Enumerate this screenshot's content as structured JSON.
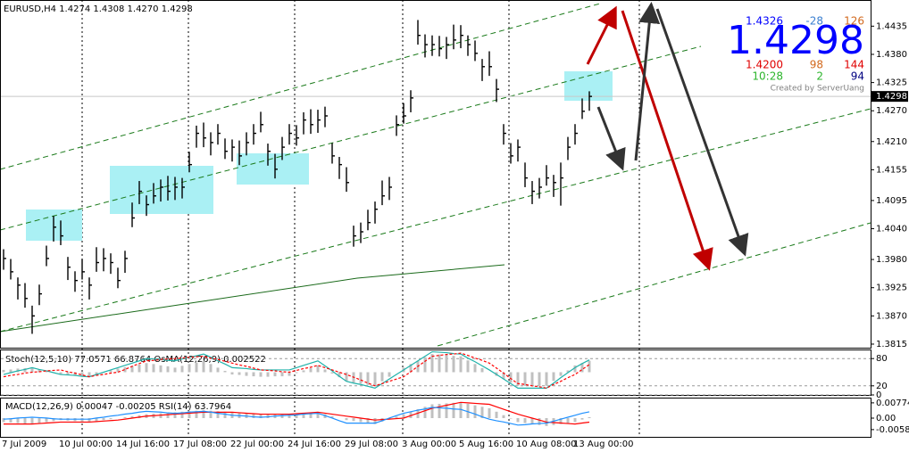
{
  "chart_data": {
    "type": "ohlc",
    "title": "EURUSD,H4  1.4274 1.4308 1.4270 1.4298",
    "color": "#000000",
    "categories": [
      "7 Jul 2009",
      null,
      null,
      null,
      null,
      null,
      null,
      null,
      "10 Jul 00:00",
      null,
      null,
      null,
      null,
      null,
      null,
      null,
      "14 Jul 16:00",
      null,
      null,
      null,
      null,
      null,
      null,
      null,
      "17 Jul 08:00",
      null,
      null,
      null,
      null,
      null,
      null,
      null,
      "22 Jul 00:00",
      null,
      null,
      null,
      null,
      null,
      null,
      null,
      "24 Jul 16:00",
      null,
      null,
      null,
      null,
      null,
      null,
      null,
      "29 Jul 08:00",
      null,
      null,
      null,
      null,
      null,
      null,
      null,
      "3 Aug 00:00",
      null,
      null,
      null,
      null,
      null,
      null,
      null,
      "5 Aug 16:00",
      null,
      null,
      null,
      null,
      null,
      null,
      null,
      "10 Aug 08:00",
      null,
      null,
      null,
      null,
      null,
      null,
      null,
      "13 Aug 00:00",
      null,
      null
    ],
    "high": [
      1.4,
      1.3981,
      1.3945,
      1.3934,
      1.389,
      1.3931,
      1.4007,
      1.4065,
      1.4056,
      1.3985,
      1.3957,
      1.3981,
      1.3945,
      1.4004,
      1.4002,
      1.3992,
      1.3964,
      1.3997,
      1.4091,
      1.4133,
      1.4105,
      1.4129,
      1.4136,
      1.4143,
      1.4141,
      1.4139,
      1.419,
      1.4241,
      1.4247,
      1.4228,
      1.4244,
      1.4216,
      1.4214,
      1.4212,
      1.4228,
      1.4244,
      1.4268,
      1.4206,
      1.4186,
      1.4219,
      1.4244,
      1.4242,
      1.4267,
      1.4273,
      1.4272,
      1.4278,
      1.4207,
      1.418,
      1.416,
      1.4046,
      1.4052,
      1.4077,
      1.4093,
      1.4134,
      1.4141,
      1.4261,
      1.4285,
      1.431,
      1.4447,
      1.4419,
      1.4417,
      1.4416,
      1.4414,
      1.4438,
      1.4437,
      1.4417,
      1.4407,
      1.4371,
      1.4386,
      1.4332,
      1.4244,
      1.4207,
      1.4214,
      1.4169,
      1.4133,
      1.4139,
      1.4164,
      1.4145,
      1.4169,
      1.4219,
      1.4244,
      1.4294,
      1.4308
    ],
    "low": [
      1.396,
      1.3941,
      1.3902,
      1.3886,
      1.3835,
      1.3891,
      1.3967,
      1.4015,
      1.4008,
      1.394,
      1.3917,
      1.3941,
      1.3902,
      1.3956,
      1.3957,
      1.3952,
      1.3924,
      1.3954,
      1.4043,
      1.4088,
      1.4065,
      1.4089,
      1.4093,
      1.4095,
      1.4096,
      1.4099,
      1.415,
      1.4198,
      1.4199,
      1.4183,
      1.4204,
      1.4176,
      1.4171,
      1.4164,
      1.4183,
      1.4204,
      1.4228,
      1.4163,
      1.4138,
      1.4174,
      1.4204,
      1.4202,
      1.4224,
      1.4225,
      1.4227,
      1.4238,
      1.4167,
      1.4137,
      1.4112,
      1.4005,
      1.4012,
      1.4037,
      1.405,
      1.4086,
      1.4096,
      1.4221,
      1.4245,
      1.4267,
      1.4399,
      1.4374,
      1.4377,
      1.4376,
      1.4371,
      1.439,
      1.4392,
      1.4377,
      1.4367,
      1.4328,
      1.4338,
      1.4287,
      1.4204,
      1.4167,
      1.4171,
      1.4121,
      1.4088,
      1.4099,
      1.4124,
      1.4102,
      1.4085,
      1.4174,
      1.4204,
      1.4254,
      1.427
    ],
    "close": [
      1.3982,
      1.3956,
      1.393,
      1.3904,
      1.387,
      1.3913,
      1.3982,
      1.4043,
      1.4026,
      1.3965,
      1.3939,
      1.3956,
      1.393,
      1.3974,
      1.3982,
      1.3974,
      1.3939,
      1.3982,
      1.4061,
      1.4113,
      1.4087,
      1.4104,
      1.4121,
      1.4113,
      1.4121,
      1.4121,
      1.4165,
      1.4226,
      1.4217,
      1.4208,
      1.4226,
      1.4191,
      1.4199,
      1.4182,
      1.4208,
      1.4226,
      1.4243,
      1.4191,
      1.4156,
      1.4199,
      1.4226,
      1.4217,
      1.4252,
      1.4243,
      1.4252,
      1.426,
      1.4182,
      1.4165,
      1.413,
      1.4026,
      1.4034,
      1.4052,
      1.4078,
      1.4104,
      1.4121,
      1.4243,
      1.426,
      1.4295,
      1.4417,
      1.4399,
      1.4399,
      1.4391,
      1.4399,
      1.4408,
      1.4417,
      1.4399,
      1.4382,
      1.4356,
      1.4356,
      1.4312,
      1.4226,
      1.4182,
      1.4199,
      1.4139,
      1.4113,
      1.4121,
      1.4139,
      1.413,
      1.4139,
      1.4199,
      1.4226,
      1.4269,
      1.4298
    ],
    "ylim": [
      1.3808,
      1.4486
    ],
    "yticks": [
      1.4435,
      {
        "value": 1.438,
        "label": "1.4380"
      },
      1.4325,
      {
        "value": 1.427,
        "label": "1.4270"
      },
      {
        "value": 1.421,
        "label": "1.4210"
      },
      1.4155,
      1.4095,
      {
        "value": 1.404,
        "label": "1.4040"
      },
      {
        "value": 1.398,
        "label": "1.3980"
      },
      1.3925,
      {
        "value": 1.387,
        "label": "1.3870"
      },
      1.3815
    ],
    "last_price": 1.4298,
    "stoch": {
      "label": "Stoch(12,5,10) 77.0571 66.8764  OsMA(12,26,9) 0.002522",
      "main_color": "#20b2aa",
      "signal_color": "#ff0000",
      "osma_color": "#c0c0c0",
      "ylim": [
        0,
        100
      ],
      "yticks": [
        80,
        20,
        0
      ],
      "osma_lim": [
        -0.005,
        0.005
      ],
      "main": [
        45,
        49,
        53,
        56,
        60,
        56,
        53,
        49,
        45,
        44,
        43,
        41,
        40,
        45,
        50,
        55,
        60,
        65,
        70,
        75,
        80,
        79,
        78,
        76,
        75,
        79,
        83,
        86,
        90,
        83,
        75,
        68,
        60,
        59,
        58,
        56,
        55,
        55,
        55,
        55,
        55,
        60,
        65,
        70,
        75,
        64,
        53,
        41,
        30,
        26,
        23,
        19,
        15,
        25,
        35,
        45,
        55,
        65,
        75,
        85,
        95,
        94,
        93,
        91,
        90,
        81,
        73,
        64,
        55,
        45,
        35,
        25,
        15,
        15,
        15,
        15,
        15,
        26,
        38,
        49,
        60,
        69,
        77.0571
      ],
      "signal": [
        40,
        43,
        45,
        48,
        50,
        51,
        53,
        54,
        55,
        51,
        48,
        44,
        40,
        43,
        45,
        48,
        50,
        56,
        63,
        69,
        75,
        76,
        78,
        79,
        80,
        81,
        83,
        84,
        85,
        81,
        78,
        74,
        70,
        66,
        63,
        59,
        55,
        54,
        53,
        51,
        50,
        54,
        58,
        61,
        65,
        60,
        55,
        50,
        45,
        39,
        33,
        26,
        20,
        25,
        30,
        35,
        40,
        51,
        63,
        74,
        85,
        87,
        89,
        90,
        92,
        87,
        81,
        76,
        70,
        59,
        48,
        36,
        25,
        23,
        20,
        18,
        15,
        23,
        30,
        38,
        45,
        56,
        66.8764
      ],
      "osma": [
        0.0005,
        0.0006,
        0.0008,
        0.0009,
        0.001,
        0.0006,
        0.0003,
        -0.0001,
        -0.0005,
        -0.0006,
        -0.0008,
        -0.0009,
        -0.001,
        -0.0005,
        -0.0001,
        0.0004,
        0.0008,
        0.0011,
        0.0014,
        0.0017,
        0.002,
        0.0018,
        0.0015,
        0.0013,
        0.001,
        0.0014,
        0.0018,
        0.0021,
        0.0025,
        0.0018,
        0.001,
        0.0003,
        -0.0005,
        -0.0006,
        -0.0008,
        -0.0009,
        -0.001,
        -0.001,
        -0.0009,
        -0.0009,
        -0.0008,
        -0.0002,
        0.0004,
        0.0009,
        0.0015,
        0.0006,
        -0.0003,
        -0.0011,
        -0.002,
        -0.0023,
        -0.0025,
        -0.0028,
        -0.003,
        -0.002,
        -0.001,
        0,
        0.001,
        0.0018,
        0.0025,
        0.0033,
        0.004,
        0.0039,
        0.0038,
        0.0036,
        0.0035,
        0.0026,
        0.0018,
        0.0009,
        0,
        -0.0008,
        -0.0015,
        -0.0023,
        -0.003,
        -0.003,
        -0.003,
        -0.003,
        -0.003,
        -0.0019,
        -0.0008,
        0.0004,
        0.0015,
        0.002,
        0.002522
      ]
    },
    "macd": {
      "label": "MACD(12,26,9) 0.00047 -0.00205  RSI(14) 63.7964",
      "hist_color": "#c0c0c0",
      "signal_color": "#ff0000",
      "rsi_color": "#1e90ff",
      "ylim": [
        -0.0095,
        0.0104
      ],
      "yticks": [
        0.00774,
        {
          "value": 0,
          "label": "0.00"
        },
        -0.00583
      ],
      "rsi_lim": [
        0,
        100
      ],
      "hist": [
        -0.002,
        -0.00225,
        -0.0025,
        -0.00275,
        -0.003,
        -0.0025,
        -0.002,
        -0.0015,
        -0.001,
        -0.00125,
        -0.0015,
        -0.00175,
        -0.002,
        -0.0015,
        -0.001,
        -0.0005,
        0,
        0.0005,
        0.001,
        0.0015,
        0.002,
        0.00225,
        0.0025,
        0.00275,
        0.003,
        0.00325,
        0.0035,
        0.00375,
        0.004,
        0.00375,
        0.0035,
        0.00325,
        0.003,
        0.00275,
        0.0025,
        0.00225,
        0.002,
        0.002,
        0.002,
        0.002,
        0.002,
        0.00225,
        0.0025,
        0.00275,
        0.003,
        0.002,
        0.001,
        0,
        -0.001,
        -0.0015,
        -0.002,
        -0.0025,
        -0.003,
        -0.00175,
        -0.0005,
        0.00075,
        0.002,
        0.00325,
        0.0045,
        0.00575,
        0.007,
        0.00725,
        0.0075,
        0.00775,
        0.008,
        0.00725,
        0.0065,
        0.00575,
        0.005,
        0.00325,
        0.0015,
        -0.00025,
        -0.002,
        -0.0025,
        -0.003,
        -0.0035,
        -0.004,
        -0.0035,
        -0.003,
        -0.0025,
        -0.002,
        -0.00075,
        0.00047
      ],
      "signal": [
        -0.003,
        -0.003,
        -0.003,
        -0.003,
        -0.003,
        -0.00275,
        -0.0025,
        -0.00225,
        -0.002,
        -0.002,
        -0.002,
        -0.002,
        -0.002,
        -0.00175,
        -0.0015,
        -0.00125,
        -0.001,
        -0.0005,
        0,
        0.0005,
        0.001,
        0.00125,
        0.0015,
        0.00175,
        0.002,
        0.00225,
        0.0025,
        0.00275,
        0.003,
        0.003,
        0.003,
        0.003,
        0.003,
        0.00275,
        0.0025,
        0.00225,
        0.002,
        0.002,
        0.002,
        0.002,
        0.002,
        0.00225,
        0.0025,
        0.00275,
        0.003,
        0.0025,
        0.002,
        0.0015,
        0.001,
        0.0005,
        0,
        -0.0005,
        -0.001,
        -0.00075,
        -0.0005,
        -0.00025,
        0,
        0.00125,
        0.0025,
        0.00375,
        0.005,
        0.00575,
        0.0065,
        0.00725,
        0.008,
        0.00775,
        0.0075,
        0.00725,
        0.007,
        0.00575,
        0.0045,
        0.00325,
        0.002,
        0.001,
        0,
        -0.001,
        -0.002,
        -0.00225,
        -0.0025,
        -0.00275,
        -0.003,
        -0.0025,
        -0.00205
      ],
      "rsi": [
        45,
        46,
        48,
        49,
        50,
        49,
        48,
        46,
        45,
        45,
        45,
        45,
        45,
        48,
        50,
        53,
        55,
        58,
        60,
        63,
        65,
        64,
        63,
        61,
        60,
        61,
        63,
        64,
        65,
        63,
        60,
        58,
        55,
        54,
        53,
        51,
        50,
        51,
        53,
        54,
        55,
        56,
        58,
        59,
        60,
        54,
        48,
        41,
        35,
        35,
        35,
        35,
        35,
        41,
        48,
        54,
        60,
        64,
        68,
        71,
        75,
        74,
        73,
        71,
        70,
        64,
        58,
        51,
        45,
        41,
        38,
        34,
        30,
        31,
        33,
        34,
        35,
        40,
        45,
        50,
        55,
        60,
        63.7964
      ]
    }
  },
  "info_panel": {
    "rows": [
      [
        "1.4326",
        "-28",
        "126"
      ],
      [
        "1.4298"
      ],
      [
        "1.4200",
        "98",
        "144"
      ],
      [
        "10:28",
        "2",
        "94"
      ]
    ],
    "credit": "Created by ServerUang"
  }
}
